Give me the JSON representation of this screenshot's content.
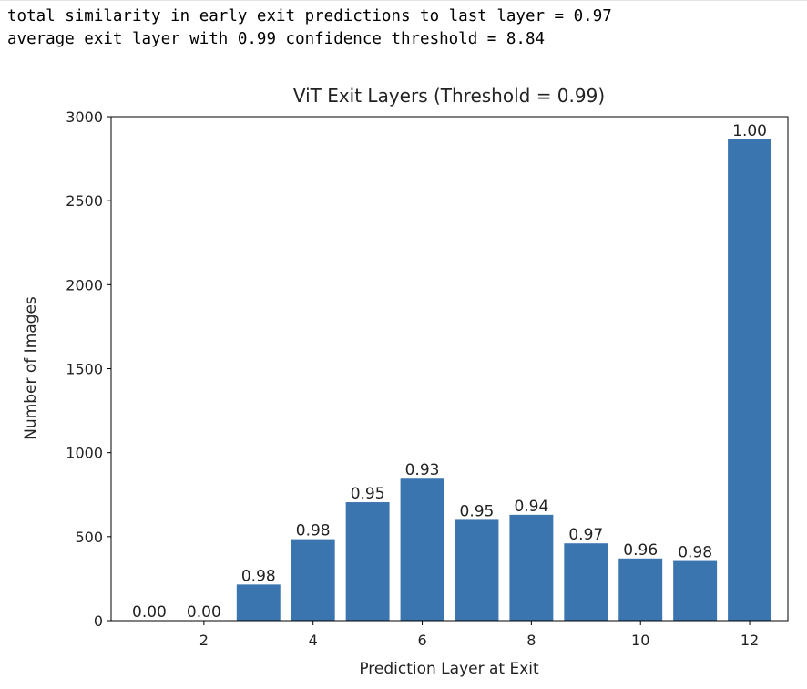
{
  "output": {
    "line1": "total similarity in early exit predictions to last layer = 0.97",
    "line2": "average exit layer with 0.99 confidence threshold = 8.84"
  },
  "chart_data": {
    "type": "bar",
    "title": "ViT Exit Layers (Threshold = 0.99)",
    "xlabel": "Prediction Layer at Exit",
    "ylabel": "Number of Images",
    "categories": [
      1,
      2,
      3,
      4,
      5,
      6,
      7,
      8,
      9,
      10,
      11,
      12
    ],
    "values": [
      0,
      0,
      215,
      485,
      705,
      845,
      600,
      630,
      460,
      370,
      355,
      2865
    ],
    "bar_labels": [
      "0.00",
      "0.00",
      "0.98",
      "0.98",
      "0.95",
      "0.93",
      "0.95",
      "0.94",
      "0.97",
      "0.96",
      "0.98",
      "1.00"
    ],
    "xticks": [
      2,
      4,
      6,
      8,
      10,
      12
    ],
    "yticks": [
      0,
      500,
      1000,
      1500,
      2000,
      2500,
      3000
    ],
    "xlim": [
      0.3,
      12.7
    ],
    "ylim": [
      0,
      3000
    ],
    "grid": false,
    "bar_color": "#3b75af"
  }
}
